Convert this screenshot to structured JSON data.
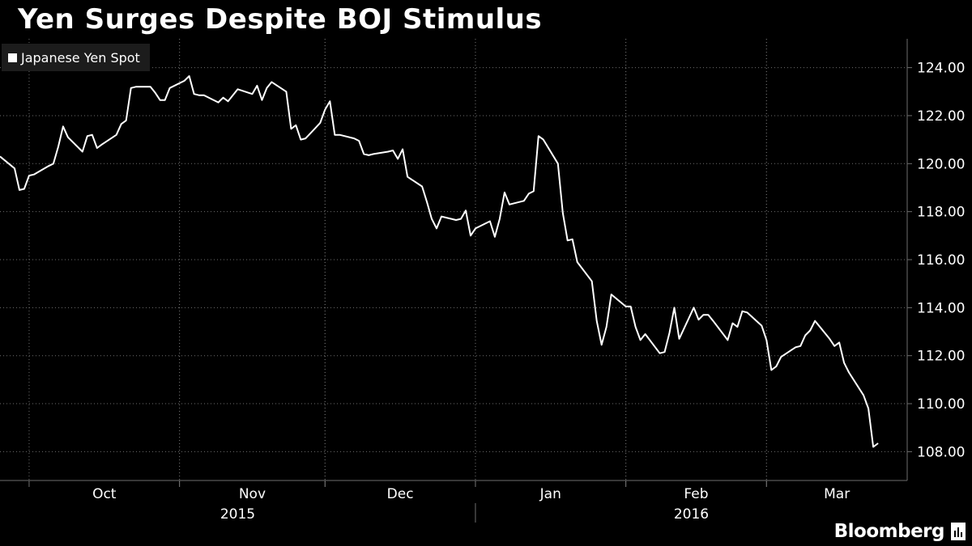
{
  "chart_data": {
    "type": "line",
    "title": "Yen Surges Despite BOJ Stimulus",
    "series": [
      {
        "name": "Japanese Yen Spot",
        "color": "#ffffff",
        "points": [
          [
            "2015-09-25",
            120.3
          ],
          [
            "2015-09-28",
            119.8
          ],
          [
            "2015-09-29",
            118.9
          ],
          [
            "2015-09-30",
            118.95
          ],
          [
            "2015-10-01",
            119.5
          ],
          [
            "2015-10-02",
            119.55
          ],
          [
            "2015-10-05",
            119.9
          ],
          [
            "2015-10-06",
            120.0
          ],
          [
            "2015-10-07",
            120.7
          ],
          [
            "2015-10-08",
            121.55
          ],
          [
            "2015-10-09",
            121.1
          ],
          [
            "2015-10-12",
            120.5
          ],
          [
            "2015-10-13",
            121.15
          ],
          [
            "2015-10-14",
            121.2
          ],
          [
            "2015-10-15",
            120.65
          ],
          [
            "2015-10-16",
            120.8
          ],
          [
            "2015-10-19",
            121.2
          ],
          [
            "2015-10-20",
            121.65
          ],
          [
            "2015-10-21",
            121.8
          ],
          [
            "2015-10-22",
            123.15
          ],
          [
            "2015-10-23",
            123.2
          ],
          [
            "2015-10-26",
            123.2
          ],
          [
            "2015-10-27",
            122.95
          ],
          [
            "2015-10-28",
            122.65
          ],
          [
            "2015-10-29",
            122.65
          ],
          [
            "2015-10-30",
            123.15
          ],
          [
            "2015-11-02",
            123.45
          ],
          [
            "2015-11-03",
            123.65
          ],
          [
            "2015-11-04",
            122.9
          ],
          [
            "2015-11-05",
            122.85
          ],
          [
            "2015-11-06",
            122.85
          ],
          [
            "2015-11-09",
            122.55
          ],
          [
            "2015-11-10",
            122.75
          ],
          [
            "2015-11-11",
            122.6
          ],
          [
            "2015-11-12",
            122.85
          ],
          [
            "2015-11-13",
            123.1
          ],
          [
            "2015-11-16",
            122.9
          ],
          [
            "2015-11-17",
            123.25
          ],
          [
            "2015-11-18",
            122.65
          ],
          [
            "2015-11-19",
            123.15
          ],
          [
            "2015-11-20",
            123.4
          ],
          [
            "2015-11-23",
            123.0
          ],
          [
            "2015-11-24",
            121.45
          ],
          [
            "2015-11-25",
            121.6
          ],
          [
            "2015-11-26",
            121.0
          ],
          [
            "2015-11-27",
            121.05
          ],
          [
            "2015-11-30",
            121.7
          ],
          [
            "2015-12-01",
            122.25
          ],
          [
            "2015-12-02",
            122.6
          ],
          [
            "2015-12-03",
            121.2
          ],
          [
            "2015-12-04",
            121.2
          ],
          [
            "2015-12-07",
            121.05
          ],
          [
            "2015-12-08",
            120.95
          ],
          [
            "2015-12-09",
            120.4
          ],
          [
            "2015-12-10",
            120.35
          ],
          [
            "2015-12-11",
            120.4
          ],
          [
            "2015-12-14",
            120.5
          ],
          [
            "2015-12-15",
            120.55
          ],
          [
            "2015-12-16",
            120.2
          ],
          [
            "2015-12-17",
            120.6
          ],
          [
            "2015-12-18",
            119.45
          ],
          [
            "2015-12-21",
            119.05
          ],
          [
            "2015-12-22",
            118.4
          ],
          [
            "2015-12-23",
            117.7
          ],
          [
            "2015-12-24",
            117.3
          ],
          [
            "2015-12-25",
            117.8
          ],
          [
            "2015-12-28",
            117.65
          ],
          [
            "2015-12-29",
            117.7
          ],
          [
            "2015-12-30",
            118.05
          ],
          [
            "2015-12-31",
            117.0
          ],
          [
            "2016-01-01",
            117.3
          ],
          [
            "2016-01-04",
            117.6
          ],
          [
            "2016-01-05",
            116.95
          ],
          [
            "2016-01-06",
            117.7
          ],
          [
            "2016-01-07",
            118.8
          ],
          [
            "2016-01-08",
            118.3
          ],
          [
            "2016-01-11",
            118.45
          ],
          [
            "2016-01-12",
            118.75
          ],
          [
            "2016-01-13",
            118.85
          ],
          [
            "2016-01-14",
            121.15
          ],
          [
            "2016-01-15",
            121.0
          ],
          [
            "2016-01-18",
            120.0
          ],
          [
            "2016-01-19",
            117.95
          ],
          [
            "2016-01-20",
            116.8
          ],
          [
            "2016-01-21",
            116.85
          ],
          [
            "2016-01-22",
            115.9
          ],
          [
            "2016-01-25",
            115.1
          ],
          [
            "2016-01-26",
            113.45
          ],
          [
            "2016-01-27",
            112.45
          ],
          [
            "2016-01-28",
            113.2
          ],
          [
            "2016-01-29",
            114.55
          ],
          [
            "2016-02-01",
            114.05
          ],
          [
            "2016-02-02",
            114.05
          ],
          [
            "2016-02-03",
            113.2
          ],
          [
            "2016-02-04",
            112.65
          ],
          [
            "2016-02-05",
            112.9
          ],
          [
            "2016-02-08",
            112.1
          ],
          [
            "2016-02-09",
            112.15
          ],
          [
            "2016-02-10",
            112.95
          ],
          [
            "2016-02-11",
            114.0
          ],
          [
            "2016-02-12",
            112.7
          ],
          [
            "2016-02-15",
            114.0
          ],
          [
            "2016-02-16",
            113.5
          ],
          [
            "2016-02-17",
            113.7
          ],
          [
            "2016-02-18",
            113.7
          ],
          [
            "2016-02-19",
            113.45
          ],
          [
            "2016-02-22",
            112.65
          ],
          [
            "2016-02-23",
            113.35
          ],
          [
            "2016-02-24",
            113.2
          ],
          [
            "2016-02-25",
            113.85
          ],
          [
            "2016-02-26",
            113.8
          ],
          [
            "2016-02-29",
            113.25
          ],
          [
            "2016-03-01",
            112.65
          ],
          [
            "2016-03-02",
            111.4
          ],
          [
            "2016-03-03",
            111.55
          ],
          [
            "2016-03-04",
            111.95
          ],
          [
            "2016-03-07",
            112.35
          ],
          [
            "2016-03-08",
            112.4
          ],
          [
            "2016-03-09",
            112.85
          ],
          [
            "2016-03-10",
            113.05
          ],
          [
            "2016-03-11",
            113.45
          ],
          [
            "2016-03-14",
            112.7
          ],
          [
            "2016-03-15",
            112.4
          ],
          [
            "2016-03-16",
            112.55
          ],
          [
            "2016-03-17",
            111.7
          ],
          [
            "2016-03-18",
            111.3
          ],
          [
            "2016-03-21",
            110.35
          ],
          [
            "2016-03-22",
            109.8
          ],
          [
            "2016-03-23",
            108.2
          ],
          [
            "2016-03-24",
            108.35
          ]
        ]
      }
    ],
    "x_axis": {
      "range": [
        "2015-09-25",
        "2016-03-30"
      ],
      "months": [
        {
          "label": "Oct",
          "start": "2015-10-01",
          "end": "2015-11-01"
        },
        {
          "label": "Nov",
          "start": "2015-11-01",
          "end": "2015-12-01"
        },
        {
          "label": "Dec",
          "start": "2015-12-01",
          "end": "2016-01-01"
        },
        {
          "label": "Jan",
          "start": "2016-01-01",
          "end": "2016-02-01"
        },
        {
          "label": "Feb",
          "start": "2016-02-01",
          "end": "2016-03-01"
        },
        {
          "label": "Mar",
          "start": "2016-03-01",
          "end": "2016-04-01"
        }
      ],
      "years": [
        {
          "label": "2015",
          "start": "2015-09-25",
          "end": "2016-01-01"
        },
        {
          "label": "2016",
          "start": "2016-01-01",
          "end": "2016-03-30"
        }
      ]
    },
    "y_axis": {
      "side": "right",
      "ylim": [
        106.8,
        125.2
      ],
      "ticks": [
        124,
        122,
        120,
        118,
        116,
        114,
        112,
        110,
        108
      ],
      "tick_labels": [
        "124.00",
        "122.00",
        "120.00",
        "118.00",
        "116.00",
        "114.00",
        "112.00",
        "110.00",
        "108.00"
      ]
    },
    "grid": "horizontal and monthly vertical dotted",
    "legend_position": "top-left"
  },
  "brand": {
    "name": "Bloomberg"
  },
  "colors": {
    "background": "#000000",
    "line": "#ffffff",
    "grid": "#6e6e6e",
    "legend_bg": "#1c1c1c"
  }
}
